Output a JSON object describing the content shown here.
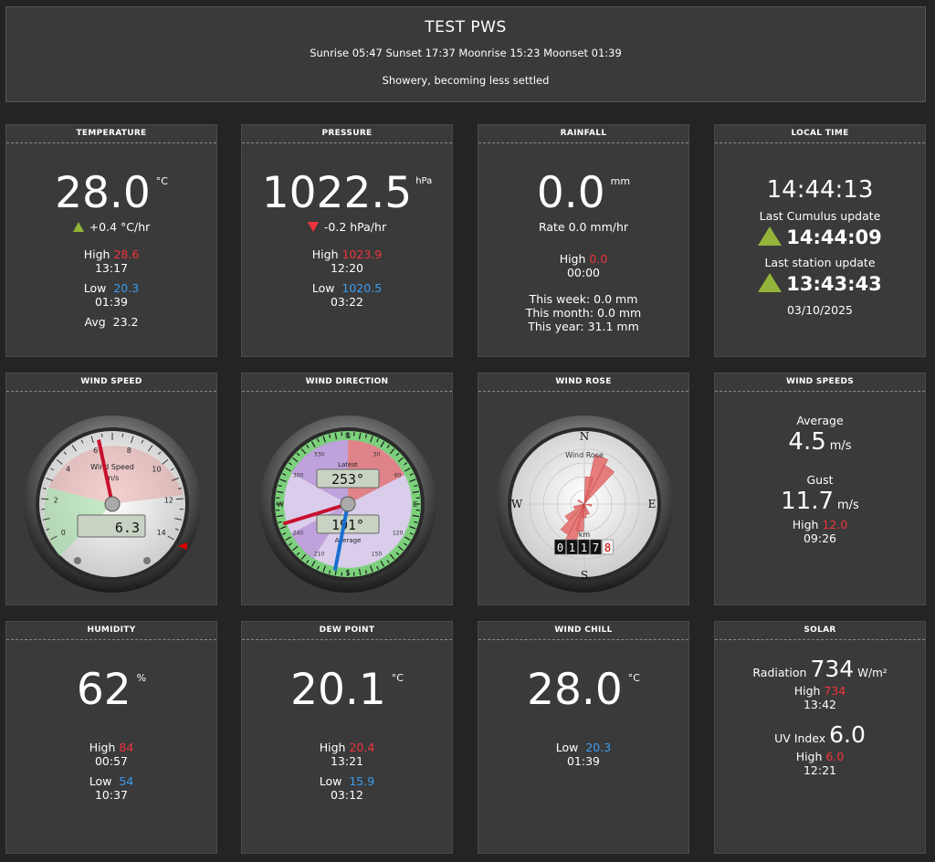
{
  "header": {
    "title": "TEST PWS",
    "astro": "Sunrise 05:47 Sunset 17:37 Moonrise 15:23 Moonset 01:39",
    "forecast": "Showery, becoming less settled"
  },
  "temperature": {
    "title": "TEMPERATURE",
    "value": "28.0",
    "unit": "°C",
    "trend": "+0.4 °C/hr",
    "high_label": "High",
    "high": "28.6",
    "high_time": "13:17",
    "low_label": "Low",
    "low": "20.3",
    "low_time": "01:39",
    "avg_label": "Avg",
    "avg": "23.2"
  },
  "pressure": {
    "title": "PRESSURE",
    "value": "1022.5",
    "unit": "hPa",
    "trend": "-0.2 hPa/hr",
    "high_label": "High",
    "high": "1023.9",
    "high_time": "12:20",
    "low_label": "Low",
    "low": "1020.5",
    "low_time": "03:22"
  },
  "rainfall": {
    "title": "RAINFALL",
    "value": "0.0",
    "unit": "mm",
    "rate": "Rate 0.0 mm/hr",
    "high_label": "High",
    "high": "0.0",
    "high_time": "00:00",
    "week": "This week: 0.0 mm",
    "month": "This month: 0.0 mm",
    "year": "This year: 31.1 mm"
  },
  "localtime": {
    "title": "LOCAL TIME",
    "time": "14:44:13",
    "cumulus_label": "Last Cumulus update",
    "cumulus_time": "14:44:09",
    "station_label": "Last station update",
    "station_time": "13:43:43",
    "date": "03/10/2025"
  },
  "windspeed": {
    "title": "WIND SPEED",
    "gauge_label": "Wind Speed",
    "gauge_unit": "m/s",
    "value": 6.3,
    "display": "6.3",
    "max": 14,
    "ticks": [
      "0",
      "2",
      "4",
      "6",
      "8",
      "10",
      "12",
      "14"
    ]
  },
  "winddir": {
    "title": "WIND DIRECTION",
    "latest_label": "Latest",
    "latest": "253°",
    "average_label": "Average",
    "average": "191°",
    "latest_deg": 253,
    "average_deg": 191,
    "cardinals": [
      "N",
      "E",
      "S",
      "W"
    ],
    "degrees": [
      "30",
      "60",
      "120",
      "150",
      "210",
      "240",
      "300",
      "330"
    ]
  },
  "windrose": {
    "title": "WIND ROSE",
    "label": "Wind Rose",
    "odo_unit": "km",
    "odometer": [
      "0",
      "1",
      "1",
      "7",
      "8"
    ],
    "cardinals": [
      "N",
      "E",
      "S",
      "W"
    ]
  },
  "windspeeds": {
    "title": "WIND SPEEDS",
    "avg_label": "Average",
    "avg": "4.5",
    "unit": "m/s",
    "gust_label": "Gust",
    "gust": "11.7",
    "high_label": "High",
    "high": "12.0",
    "high_time": "09:26"
  },
  "humidity": {
    "title": "HUMIDITY",
    "value": "62",
    "unit": "%",
    "high_label": "High",
    "high": "84",
    "high_time": "00:57",
    "low_label": "Low",
    "low": "54",
    "low_time": "10:37"
  },
  "dewpoint": {
    "title": "DEW POINT",
    "value": "20.1",
    "unit": "°C",
    "high_label": "High",
    "high": "20.4",
    "high_time": "13:21",
    "low_label": "Low",
    "low": "15.9",
    "low_time": "03:12"
  },
  "windchill": {
    "title": "WIND CHILL",
    "value": "28.0",
    "unit": "°C",
    "low_label": "Low",
    "low": "20.3",
    "low_time": "01:39"
  },
  "solar": {
    "title": "SOLAR",
    "rad_label": "Radiation",
    "rad": "734",
    "rad_unit": "W/m²",
    "rad_high_label": "High",
    "rad_high": "734",
    "rad_high_time": "13:42",
    "uv_label": "UV Index",
    "uv": "6.0",
    "uv_high_label": "High",
    "uv_high": "6.0",
    "uv_high_time": "12:21"
  },
  "colors": {
    "panel": "#3a3a3a",
    "background": "#242424",
    "high": "#f0333b",
    "low": "#3a9cf0",
    "trend_up": "#94b33a"
  }
}
